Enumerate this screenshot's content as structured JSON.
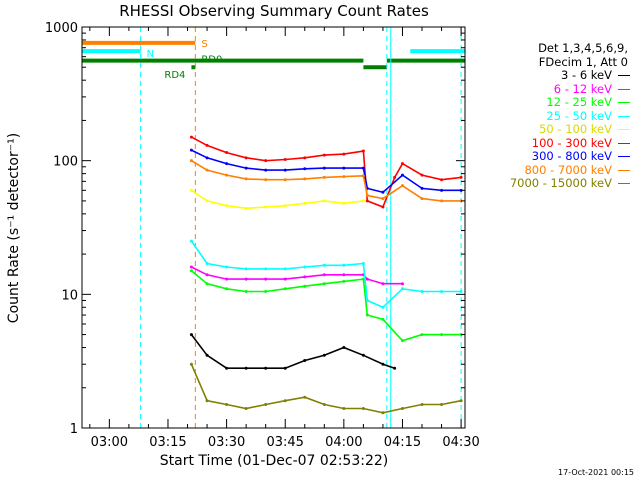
{
  "chart_data": {
    "type": "line",
    "title": "RHESSI Observing Summary Count Rates",
    "xlabel": "Start Time (01-Dec-07 02:53:22)",
    "ylabel": "Count Rate (s⁻¹ detector⁻¹)",
    "y_scale": "log",
    "ylim": [
      1,
      1000
    ],
    "y_ticks": [
      1,
      10,
      100,
      1000
    ],
    "y_tick_labels": [
      "1",
      "10",
      "100",
      "1000"
    ],
    "x_range": [
      "02:53",
      "04:31"
    ],
    "x_ticks": [
      "03:00",
      "03:15",
      "03:30",
      "03:45",
      "04:00",
      "04:15",
      "04:30"
    ],
    "legend": {
      "position": "right",
      "header": [
        "Det 1,3,4,5,6,9,",
        "FDecim 1, Att 0"
      ]
    },
    "series": [
      {
        "name": "3 - 6 keV",
        "color": "#000000",
        "x": [
          "03:21",
          "03:25",
          "03:30",
          "03:35",
          "03:40",
          "03:45",
          "03:50",
          "03:55",
          "04:00",
          "04:05",
          "04:10",
          "04:13"
        ],
        "values": [
          5,
          3.5,
          2.8,
          2.8,
          2.8,
          2.8,
          3.2,
          3.5,
          4,
          3.5,
          3,
          2.8
        ]
      },
      {
        "name": "6 - 12 keV",
        "color": "#ff00ff",
        "x": [
          "03:21",
          "03:25",
          "03:30",
          "03:35",
          "03:40",
          "03:45",
          "03:50",
          "03:55",
          "04:00",
          "04:05",
          "04:06",
          "04:10",
          "04:15"
        ],
        "values": [
          16,
          14,
          13,
          13,
          13,
          13,
          13.5,
          14,
          14,
          14,
          13,
          12,
          12
        ]
      },
      {
        "name": "12 - 25 keV",
        "color": "#00ff00",
        "x": [
          "03:21",
          "03:25",
          "03:30",
          "03:35",
          "03:40",
          "03:45",
          "03:50",
          "03:55",
          "04:00",
          "04:05",
          "04:06",
          "04:10",
          "04:15",
          "04:20",
          "04:25",
          "04:30"
        ],
        "values": [
          15,
          12,
          11,
          10.5,
          10.5,
          11,
          11.5,
          12,
          12.5,
          13,
          7,
          6.5,
          4.5,
          5,
          5,
          5
        ]
      },
      {
        "name": "25 - 50 keV",
        "color": "#00ffff",
        "x": [
          "03:21",
          "03:25",
          "03:30",
          "03:35",
          "03:40",
          "03:45",
          "03:50",
          "03:55",
          "04:00",
          "04:05",
          "04:06",
          "04:10",
          "04:15",
          "04:20",
          "04:25",
          "04:30"
        ],
        "values": [
          25,
          17,
          16,
          15.5,
          15.5,
          15.5,
          16,
          16.5,
          16.5,
          17,
          9,
          8,
          11,
          10.5,
          10.5,
          10.5
        ]
      },
      {
        "name": "50 - 100 keV",
        "color": "#ffff00",
        "x": [
          "03:21",
          "03:25",
          "03:30",
          "03:35",
          "03:40",
          "03:45",
          "03:50",
          "03:55",
          "04:00",
          "04:05"
        ],
        "values": [
          60,
          50,
          46,
          44,
          45,
          46,
          48,
          50,
          48,
          50
        ]
      },
      {
        "name": "100 - 300 keV",
        "color": "#ff0000",
        "x": [
          "03:21",
          "03:25",
          "03:30",
          "03:35",
          "03:40",
          "03:45",
          "03:50",
          "03:55",
          "04:00",
          "04:05",
          "04:06",
          "04:10",
          "04:13",
          "04:15",
          "04:20",
          "04:25",
          "04:30"
        ],
        "values": [
          150,
          130,
          115,
          105,
          100,
          102,
          105,
          110,
          112,
          118,
          50,
          45,
          75,
          95,
          78,
          72,
          75
        ]
      },
      {
        "name": "300 - 800 keV",
        "color": "#0000ff",
        "x": [
          "03:21",
          "03:25",
          "03:30",
          "03:35",
          "03:40",
          "03:45",
          "03:50",
          "03:55",
          "04:00",
          "04:05",
          "04:06",
          "04:10",
          "04:15",
          "04:20",
          "04:25",
          "04:30"
        ],
        "values": [
          120,
          105,
          95,
          88,
          85,
          85,
          87,
          88,
          88,
          88,
          62,
          58,
          78,
          62,
          60,
          60
        ]
      },
      {
        "name": "800 - 7000 keV",
        "color": "#ff7f00",
        "x": [
          "03:21",
          "03:25",
          "03:30",
          "03:35",
          "03:40",
          "03:45",
          "03:50",
          "03:55",
          "04:00",
          "04:05",
          "04:06",
          "04:10",
          "04:15",
          "04:20",
          "04:25",
          "04:30"
        ],
        "values": [
          100,
          85,
          78,
          73,
          72,
          72,
          73,
          75,
          76,
          77,
          55,
          52,
          65,
          52,
          50,
          50
        ]
      },
      {
        "name": "7000 - 15000 keV",
        "color": "#808000",
        "x": [
          "03:21",
          "03:25",
          "03:30",
          "03:35",
          "03:40",
          "03:45",
          "03:50",
          "03:55",
          "04:00",
          "04:05",
          "04:10",
          "04:15",
          "04:20",
          "04:25",
          "04:30"
        ],
        "values": [
          3.0,
          1.6,
          1.5,
          1.4,
          1.5,
          1.6,
          1.7,
          1.5,
          1.4,
          1.4,
          1.3,
          1.4,
          1.5,
          1.5,
          1.6
        ]
      }
    ],
    "annotations": [
      {
        "text": "S",
        "color": "#ff7f00"
      },
      {
        "text": "N",
        "color": "#00ffff"
      },
      {
        "text": "RD4",
        "color": "#008000"
      },
      {
        "text": "RD0",
        "color": "#008000"
      }
    ],
    "state_bars": [
      {
        "name": "S",
        "color": "#ff7f00",
        "level": 760,
        "segments": [
          [
            "02:53",
            "03:22"
          ]
        ]
      },
      {
        "name": "N",
        "color": "#00ffff",
        "level": 660,
        "segments": [
          [
            "02:53",
            "03:08"
          ],
          [
            "04:17",
            "04:31"
          ]
        ]
      },
      {
        "name": "RD0",
        "color": "#008000",
        "level": 560,
        "segments": [
          [
            "02:53",
            "04:05"
          ],
          [
            "04:11",
            "04:31"
          ]
        ]
      },
      {
        "name": "RD0-low",
        "color": "#008000",
        "level": 500,
        "segments": [
          [
            "03:21",
            "03:22"
          ],
          [
            "04:05",
            "04:11"
          ]
        ]
      }
    ],
    "vlines": [
      {
        "x": "03:08",
        "color": "#00ffff",
        "style": "dashed"
      },
      {
        "x": "03:22",
        "color": "#ff7f00",
        "style": "dashed"
      },
      {
        "x": "04:11",
        "color": "#00ffff",
        "style": "dashed"
      },
      {
        "x": "04:12",
        "color": "#00ffff",
        "style": "solid"
      },
      {
        "x": "04:30",
        "color": "#00ffff",
        "style": "dashed"
      }
    ]
  },
  "footer": {
    "timestamp": "17-Oct-2021 00:15"
  }
}
